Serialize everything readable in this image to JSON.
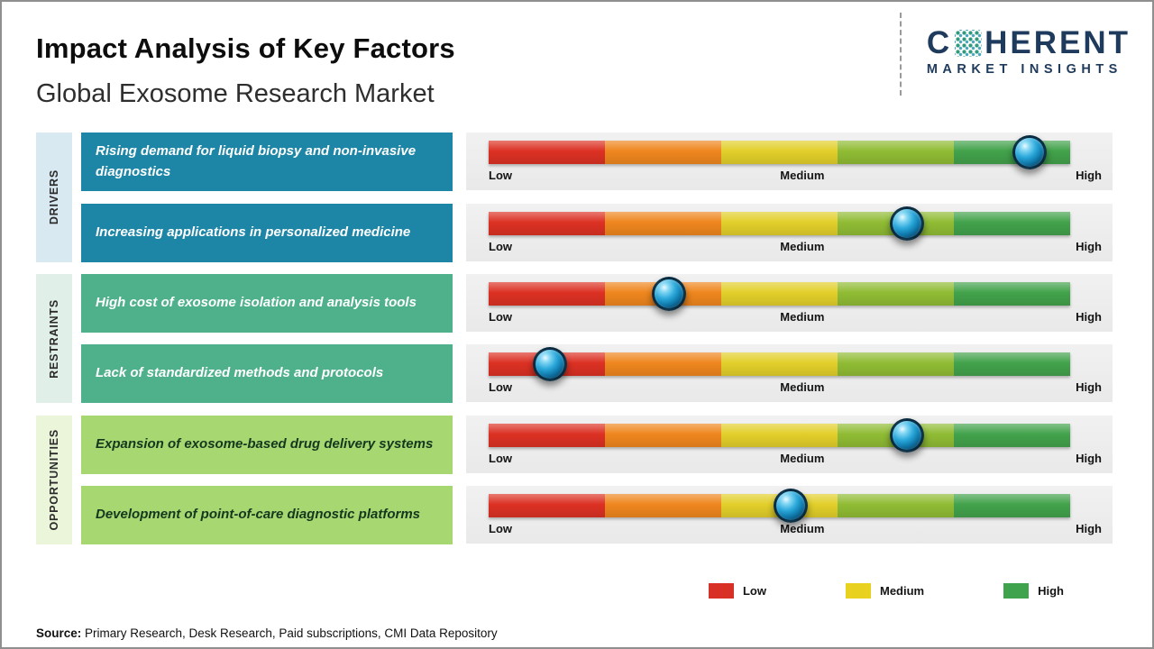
{
  "header": {
    "title": "Impact Analysis of Key Factors",
    "subtitle": "Global Exosome Research Market"
  },
  "brand": {
    "name_prefix": "C",
    "name_suffix": "HERENT",
    "tagline": "MARKET INSIGHTS",
    "color": "#1e3a5c",
    "mosaic_colors": [
      "#2f9a7d",
      "#4aa7c0"
    ]
  },
  "impact_bar": {
    "segment_colors": [
      "#dc3123",
      "#ef861e",
      "#e2cf2a",
      "#90bc34",
      "#42a24b"
    ],
    "labels": {
      "low": "Low",
      "medium": "Medium",
      "high": "High"
    }
  },
  "groups": [
    {
      "label": "DRIVERS",
      "box_color": "#1d86a6",
      "text_color": "#ffffff",
      "sidebar_color": "#d8e9f1",
      "rows": [
        {
          "text": "Rising demand for liquid biopsy and non-invasive diagnostics",
          "impact_level": "High",
          "marker_left": "93%"
        },
        {
          "text": "Increasing applications in personalized medicine",
          "impact_level": "Medium-High",
          "marker_left": "72%"
        }
      ]
    },
    {
      "label": "RESTRAINTS",
      "box_color": "#4fb18c",
      "text_color": "#ffffff",
      "sidebar_color": "#e0efe8",
      "rows": [
        {
          "text": "High cost of exosome isolation and analysis tools",
          "impact_level": "Low-Medium",
          "marker_left": "31%"
        },
        {
          "text": "Lack of standardized methods and protocols",
          "impact_level": "Low",
          "marker_left": "10.5%"
        }
      ]
    },
    {
      "label": "OPPORTUNITIES",
      "box_color": "#a6d771",
      "text_color": "#15371e",
      "sidebar_color": "#ebf5da",
      "rows": [
        {
          "text": "Expansion of exosome-based drug delivery systems",
          "impact_level": "Medium-High",
          "marker_left": "72%"
        },
        {
          "text": "Development of point-of-care diagnostic platforms",
          "impact_level": "Medium",
          "marker_left": "52%"
        }
      ]
    }
  ],
  "legend": {
    "items": [
      {
        "label": "Low",
        "color": "#d93025"
      },
      {
        "label": "Medium",
        "color": "#e8d11f"
      },
      {
        "label": "High",
        "color": "#3fa24c"
      }
    ]
  },
  "source": {
    "prefix": "Source:",
    "text": " Primary Research, Desk Research, Paid subscriptions, CMI Data Repository"
  },
  "chart_data": {
    "type": "bar",
    "title": "Impact Analysis of Key Factors",
    "subtitle": "Global Exosome Research Market",
    "scale_labels": [
      "Low",
      "Medium",
      "High"
    ],
    "scale_range": [
      0,
      100
    ],
    "legend": [
      "Low",
      "Medium",
      "High"
    ],
    "legend_position": "bottom-right",
    "series": [
      {
        "group": "Drivers",
        "factor": "Rising demand for liquid biopsy and non-invasive diagnostics",
        "impact_pct": 93,
        "impact_level": "High"
      },
      {
        "group": "Drivers",
        "factor": "Increasing applications in personalized medicine",
        "impact_pct": 72,
        "impact_level": "Medium-High"
      },
      {
        "group": "Restraints",
        "factor": "High cost of exosome isolation and analysis tools",
        "impact_pct": 31,
        "impact_level": "Low-Medium"
      },
      {
        "group": "Restraints",
        "factor": "Lack of standardized methods and protocols",
        "impact_pct": 10,
        "impact_level": "Low"
      },
      {
        "group": "Opportunities",
        "factor": "Expansion of exosome-based drug delivery systems",
        "impact_pct": 72,
        "impact_level": "Medium-High"
      },
      {
        "group": "Opportunities",
        "factor": "Development of point-of-care diagnostic platforms",
        "impact_pct": 52,
        "impact_level": "Medium"
      }
    ]
  }
}
